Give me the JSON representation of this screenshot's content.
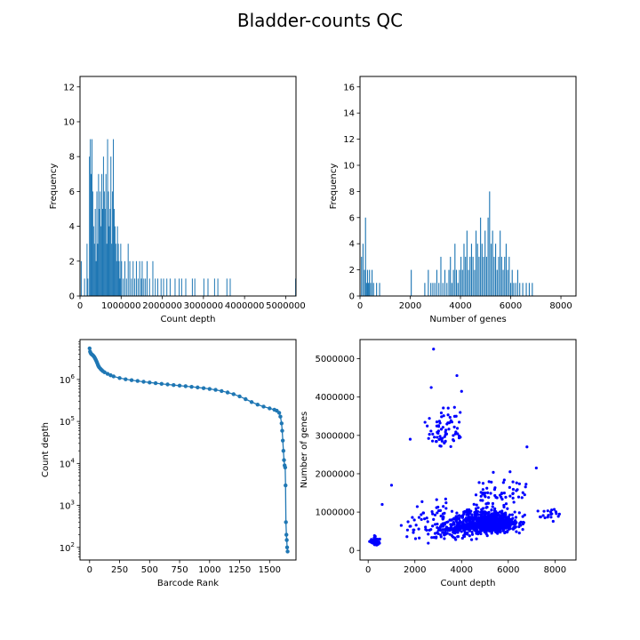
{
  "figure": {
    "suptitle": "Bladder-counts QC"
  },
  "colors": {
    "hist": "#1f77b4",
    "scatter": "#0000ff",
    "axis": "#000000"
  },
  "chart_data": [
    {
      "type": "bar",
      "id": "count-depth-hist",
      "xlabel": "Count depth",
      "ylabel": "Frequency",
      "xlim": [
        0,
        5250000
      ],
      "ylim": [
        0,
        12.6
      ],
      "xticks": [
        0,
        1000000,
        2000000,
        3000000,
        4000000,
        5000000
      ],
      "yticks": [
        0,
        2,
        4,
        6,
        8,
        10,
        12
      ],
      "bins": [
        {
          "x": 20000,
          "y": 2
        },
        {
          "x": 100000,
          "y": 1
        },
        {
          "x": 160000,
          "y": 3
        },
        {
          "x": 180000,
          "y": 1
        },
        {
          "x": 220000,
          "y": 8
        },
        {
          "x": 240000,
          "y": 9
        },
        {
          "x": 260000,
          "y": 7
        },
        {
          "x": 280000,
          "y": 9
        },
        {
          "x": 300000,
          "y": 6
        },
        {
          "x": 320000,
          "y": 4
        },
        {
          "x": 340000,
          "y": 3
        },
        {
          "x": 360000,
          "y": 5
        },
        {
          "x": 380000,
          "y": 2
        },
        {
          "x": 400000,
          "y": 6
        },
        {
          "x": 420000,
          "y": 3
        },
        {
          "x": 440000,
          "y": 7
        },
        {
          "x": 460000,
          "y": 5
        },
        {
          "x": 480000,
          "y": 6
        },
        {
          "x": 500000,
          "y": 4
        },
        {
          "x": 520000,
          "y": 7
        },
        {
          "x": 540000,
          "y": 5
        },
        {
          "x": 560000,
          "y": 8
        },
        {
          "x": 580000,
          "y": 6
        },
        {
          "x": 600000,
          "y": 5
        },
        {
          "x": 620000,
          "y": 7
        },
        {
          "x": 640000,
          "y": 3
        },
        {
          "x": 660000,
          "y": 9
        },
        {
          "x": 680000,
          "y": 6
        },
        {
          "x": 700000,
          "y": 4
        },
        {
          "x": 720000,
          "y": 5
        },
        {
          "x": 740000,
          "y": 8
        },
        {
          "x": 760000,
          "y": 3
        },
        {
          "x": 780000,
          "y": 6
        },
        {
          "x": 800000,
          "y": 9
        },
        {
          "x": 820000,
          "y": 5
        },
        {
          "x": 840000,
          "y": 4
        },
        {
          "x": 860000,
          "y": 3
        },
        {
          "x": 880000,
          "y": 2
        },
        {
          "x": 900000,
          "y": 4
        },
        {
          "x": 920000,
          "y": 3
        },
        {
          "x": 940000,
          "y": 2
        },
        {
          "x": 960000,
          "y": 1
        },
        {
          "x": 980000,
          "y": 3
        },
        {
          "x": 1000000,
          "y": 2
        },
        {
          "x": 1040000,
          "y": 1
        },
        {
          "x": 1080000,
          "y": 2
        },
        {
          "x": 1120000,
          "y": 1
        },
        {
          "x": 1160000,
          "y": 3
        },
        {
          "x": 1200000,
          "y": 2
        },
        {
          "x": 1240000,
          "y": 1
        },
        {
          "x": 1280000,
          "y": 2
        },
        {
          "x": 1320000,
          "y": 1
        },
        {
          "x": 1360000,
          "y": 2
        },
        {
          "x": 1400000,
          "y": 1
        },
        {
          "x": 1440000,
          "y": 2
        },
        {
          "x": 1480000,
          "y": 1
        },
        {
          "x": 1500000,
          "y": 2
        },
        {
          "x": 1540000,
          "y": 1
        },
        {
          "x": 1580000,
          "y": 1
        },
        {
          "x": 1620000,
          "y": 2
        },
        {
          "x": 1680000,
          "y": 1
        },
        {
          "x": 1760000,
          "y": 2
        },
        {
          "x": 1820000,
          "y": 1
        },
        {
          "x": 1880000,
          "y": 1
        },
        {
          "x": 1960000,
          "y": 1
        },
        {
          "x": 2020000,
          "y": 1
        },
        {
          "x": 2100000,
          "y": 1
        },
        {
          "x": 2180000,
          "y": 1
        },
        {
          "x": 2300000,
          "y": 1
        },
        {
          "x": 2400000,
          "y": 1
        },
        {
          "x": 2460000,
          "y": 1
        },
        {
          "x": 2560000,
          "y": 1
        },
        {
          "x": 2720000,
          "y": 1
        },
        {
          "x": 2780000,
          "y": 1
        },
        {
          "x": 3000000,
          "y": 1
        },
        {
          "x": 3100000,
          "y": 1
        },
        {
          "x": 3260000,
          "y": 1
        },
        {
          "x": 3340000,
          "y": 1
        },
        {
          "x": 3560000,
          "y": 1
        },
        {
          "x": 3640000,
          "y": 1
        },
        {
          "x": 5230000,
          "y": 1
        }
      ]
    },
    {
      "type": "bar",
      "id": "genes-hist",
      "xlabel": "Number of genes",
      "ylabel": "Frequency",
      "xlim": [
        0,
        8600
      ],
      "ylim": [
        0,
        16.8
      ],
      "xticks": [
        0,
        2000,
        4000,
        6000,
        8000
      ],
      "yticks": [
        0,
        2,
        4,
        6,
        8,
        10,
        12,
        14,
        16
      ],
      "bins": [
        {
          "x": 40,
          "y": 3
        },
        {
          "x": 100,
          "y": 4
        },
        {
          "x": 160,
          "y": 2
        },
        {
          "x": 200,
          "y": 6
        },
        {
          "x": 240,
          "y": 1
        },
        {
          "x": 280,
          "y": 2
        },
        {
          "x": 320,
          "y": 1
        },
        {
          "x": 360,
          "y": 2
        },
        {
          "x": 400,
          "y": 1
        },
        {
          "x": 460,
          "y": 2
        },
        {
          "x": 520,
          "y": 1
        },
        {
          "x": 640,
          "y": 1
        },
        {
          "x": 760,
          "y": 1
        },
        {
          "x": 2020,
          "y": 2
        },
        {
          "x": 2560,
          "y": 1
        },
        {
          "x": 2700,
          "y": 2
        },
        {
          "x": 2800,
          "y": 1
        },
        {
          "x": 2880,
          "y": 1
        },
        {
          "x": 2960,
          "y": 1
        },
        {
          "x": 3040,
          "y": 2
        },
        {
          "x": 3120,
          "y": 1
        },
        {
          "x": 3200,
          "y": 3
        },
        {
          "x": 3280,
          "y": 1
        },
        {
          "x": 3360,
          "y": 2
        },
        {
          "x": 3440,
          "y": 1
        },
        {
          "x": 3520,
          "y": 2
        },
        {
          "x": 3580,
          "y": 3
        },
        {
          "x": 3640,
          "y": 1
        },
        {
          "x": 3700,
          "y": 2
        },
        {
          "x": 3760,
          "y": 4
        },
        {
          "x": 3820,
          "y": 2
        },
        {
          "x": 3880,
          "y": 1
        },
        {
          "x": 3940,
          "y": 2
        },
        {
          "x": 4000,
          "y": 3
        },
        {
          "x": 4060,
          "y": 2
        },
        {
          "x": 4120,
          "y": 4
        },
        {
          "x": 4180,
          "y": 3
        },
        {
          "x": 4240,
          "y": 5
        },
        {
          "x": 4300,
          "y": 2
        },
        {
          "x": 4360,
          "y": 3
        },
        {
          "x": 4420,
          "y": 4
        },
        {
          "x": 4480,
          "y": 3
        },
        {
          "x": 4540,
          "y": 2
        },
        {
          "x": 4600,
          "y": 5
        },
        {
          "x": 4660,
          "y": 4
        },
        {
          "x": 4720,
          "y": 3
        },
        {
          "x": 4780,
          "y": 6
        },
        {
          "x": 4840,
          "y": 4
        },
        {
          "x": 4900,
          "y": 3
        },
        {
          "x": 4960,
          "y": 5
        },
        {
          "x": 5020,
          "y": 3
        },
        {
          "x": 5080,
          "y": 6
        },
        {
          "x": 5140,
          "y": 8
        },
        {
          "x": 5200,
          "y": 4
        },
        {
          "x": 5260,
          "y": 5
        },
        {
          "x": 5320,
          "y": 3
        },
        {
          "x": 5380,
          "y": 4
        },
        {
          "x": 5440,
          "y": 2
        },
        {
          "x": 5500,
          "y": 3
        },
        {
          "x": 5560,
          "y": 5
        },
        {
          "x": 5620,
          "y": 3
        },
        {
          "x": 5680,
          "y": 2
        },
        {
          "x": 5740,
          "y": 3
        },
        {
          "x": 5800,
          "y": 4
        },
        {
          "x": 5860,
          "y": 2
        },
        {
          "x": 5920,
          "y": 3
        },
        {
          "x": 5980,
          "y": 1
        },
        {
          "x": 6040,
          "y": 2
        },
        {
          "x": 6100,
          "y": 1
        },
        {
          "x": 6180,
          "y": 1
        },
        {
          "x": 6260,
          "y": 2
        },
        {
          "x": 6340,
          "y": 1
        },
        {
          "x": 6460,
          "y": 1
        },
        {
          "x": 6600,
          "y": 1
        },
        {
          "x": 6720,
          "y": 1
        },
        {
          "x": 6840,
          "y": 1
        }
      ]
    },
    {
      "type": "line",
      "id": "barcode-rank",
      "xlabel": "Barcode Rank",
      "ylabel": "Count depth",
      "yscale": "log",
      "xlim": [
        -80,
        1720
      ],
      "ylim_exponent": [
        1.7,
        6.95
      ],
      "xticks": [
        0,
        250,
        500,
        750,
        1000,
        1250,
        1500
      ],
      "ytick_exponents": [
        2,
        3,
        4,
        5,
        6
      ],
      "points": [
        [
          0,
          5500000
        ],
        [
          4,
          4600000
        ],
        [
          8,
          4300000
        ],
        [
          12,
          4100000
        ],
        [
          16,
          4000000
        ],
        [
          20,
          3900000
        ],
        [
          25,
          3800000
        ],
        [
          30,
          3700000
        ],
        [
          35,
          3550000
        ],
        [
          40,
          3400000
        ],
        [
          45,
          3200000
        ],
        [
          50,
          3000000
        ],
        [
          55,
          2800000
        ],
        [
          60,
          2600000
        ],
        [
          65,
          2400000
        ],
        [
          70,
          2200000
        ],
        [
          75,
          2050000
        ],
        [
          80,
          1950000
        ],
        [
          90,
          1800000
        ],
        [
          100,
          1680000
        ],
        [
          110,
          1580000
        ],
        [
          125,
          1480000
        ],
        [
          150,
          1360000
        ],
        [
          175,
          1260000
        ],
        [
          200,
          1180000
        ],
        [
          250,
          1080000
        ],
        [
          300,
          1010000
        ],
        [
          350,
          960000
        ],
        [
          400,
          920000
        ],
        [
          450,
          880000
        ],
        [
          500,
          845000
        ],
        [
          550,
          815000
        ],
        [
          600,
          785000
        ],
        [
          650,
          760000
        ],
        [
          700,
          735000
        ],
        [
          750,
          712000
        ],
        [
          800,
          690000
        ],
        [
          850,
          668000
        ],
        [
          900,
          645000
        ],
        [
          950,
          620000
        ],
        [
          1000,
          595000
        ],
        [
          1050,
          565000
        ],
        [
          1100,
          530000
        ],
        [
          1150,
          490000
        ],
        [
          1200,
          445000
        ],
        [
          1250,
          395000
        ],
        [
          1300,
          340000
        ],
        [
          1350,
          290000
        ],
        [
          1400,
          252000
        ],
        [
          1450,
          225000
        ],
        [
          1500,
          205000
        ],
        [
          1540,
          190000
        ],
        [
          1560,
          180000
        ],
        [
          1580,
          160000
        ],
        [
          1590,
          130000
        ],
        [
          1600,
          90000
        ],
        [
          1605,
          60000
        ],
        [
          1610,
          35000
        ],
        [
          1615,
          20000
        ],
        [
          1620,
          12000
        ],
        [
          1625,
          9000
        ],
        [
          1630,
          8000
        ],
        [
          1633,
          3000
        ],
        [
          1636,
          400
        ],
        [
          1640,
          200
        ],
        [
          1643,
          150
        ],
        [
          1646,
          100
        ],
        [
          1650,
          80
        ]
      ]
    },
    {
      "type": "scatter",
      "id": "depth-vs-genes",
      "xlabel": "Count depth",
      "ylabel": "Number of genes",
      "xlim": [
        -350,
        8900
      ],
      "ylim": [
        -250000,
        5500000
      ],
      "xticks": [
        0,
        2000,
        4000,
        6000,
        8000
      ],
      "yticks": [
        0,
        1000000,
        2000000,
        3000000,
        4000000,
        5000000
      ],
      "n_points": 1300,
      "clusters": [
        {
          "cx": 300,
          "cy": 230000,
          "sx": 120,
          "sy": 90000,
          "n": 70
        },
        {
          "cx": 5200,
          "cy": 700000,
          "sx": 800,
          "sy": 230000,
          "n": 820
        },
        {
          "cx": 3600,
          "cy": 600000,
          "sx": 1100,
          "sy": 380000,
          "n": 250
        },
        {
          "cx": 3300,
          "cy": 3100000,
          "sx": 500,
          "sy": 450000,
          "n": 70
        },
        {
          "cx": 5600,
          "cy": 1500000,
          "sx": 900,
          "sy": 400000,
          "n": 60
        },
        {
          "cx": 7800,
          "cy": 900000,
          "sx": 400,
          "sy": 150000,
          "n": 20
        }
      ],
      "outliers": [
        [
          2800,
          5250000
        ],
        [
          3800,
          4560000
        ],
        [
          2700,
          4250000
        ],
        [
          4000,
          4150000
        ],
        [
          1800,
          2900000
        ],
        [
          7200,
          2150000
        ],
        [
          600,
          1200000
        ],
        [
          1000,
          1700000
        ],
        [
          6800,
          2700000
        ]
      ]
    }
  ]
}
